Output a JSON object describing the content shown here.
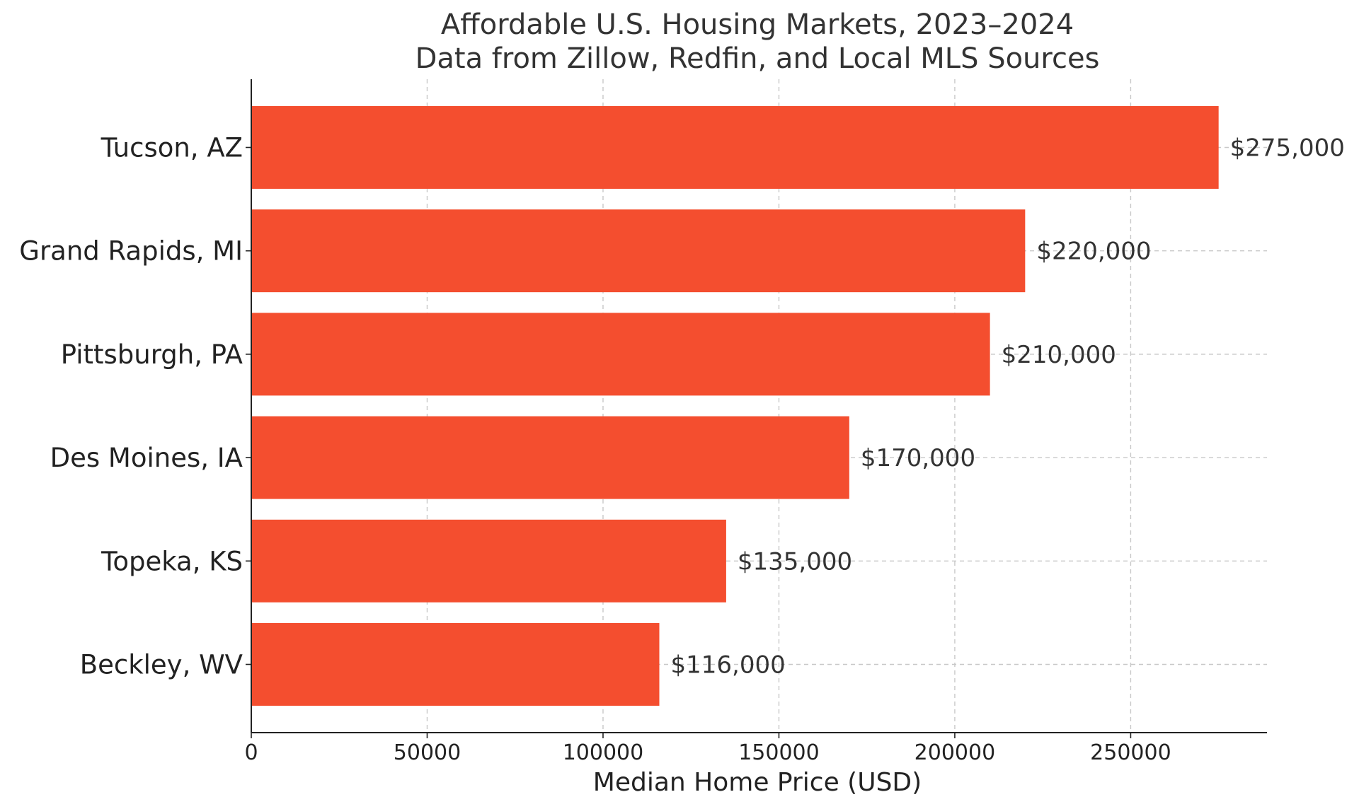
{
  "chart_data": {
    "type": "bar",
    "orientation": "horizontal",
    "title_lines": [
      "Affordable U.S. Housing Markets, 2023–2024",
      "Data from Zillow, Redfin, and Local MLS Sources"
    ],
    "xlabel": "Median Home Price (USD)",
    "ylabel": "",
    "categories": [
      "Tucson, AZ",
      "Grand Rapids, MI",
      "Pittsburgh, PA",
      "Des Moines, IA",
      "Topeka, KS",
      "Beckley, WV"
    ],
    "values": [
      275000,
      220000,
      210000,
      170000,
      135000,
      116000
    ],
    "value_labels": [
      "$275,000",
      "$220,000",
      "$210,000",
      "$170,000",
      "$135,000",
      "$116,000"
    ],
    "xlim": [
      0,
      288750
    ],
    "xticks": [
      0,
      50000,
      100000,
      150000,
      200000,
      250000
    ],
    "xtick_labels": [
      "0",
      "50000",
      "100000",
      "150000",
      "200000",
      "250000"
    ],
    "grid": true,
    "bar_color": "#F44E2F"
  }
}
